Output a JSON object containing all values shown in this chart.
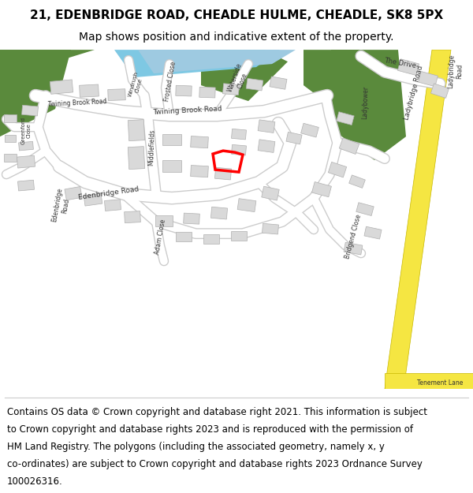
{
  "title_line1": "21, EDENBRIDGE ROAD, CHEADLE HULME, CHEADLE, SK8 5PX",
  "title_line2": "Map shows position and indicative extent of the property.",
  "footer_lines": [
    "Contains OS data © Crown copyright and database right 2021. This information is subject",
    "to Crown copyright and database rights 2023 and is reproduced with the permission of",
    "HM Land Registry. The polygons (including the associated geometry, namely x, y",
    "co-ordinates) are subject to Crown copyright and database rights 2023 Ordnance Survey",
    "100026316."
  ],
  "title_fontsize": 11,
  "subtitle_fontsize": 10,
  "footer_fontsize": 8.5,
  "map_bg": "#f2f2f0",
  "green_color": "#5a8a3c",
  "water_color": "#7ec8e3",
  "blue_color": "#9ecae1",
  "building_color": "#d9d9d9",
  "building_outline": "#b0b0b0",
  "yellow_road": "#f5e642",
  "yellow_road_edge": "#c8b800",
  "red_outline_color": "#ff0000",
  "white_road": "#ffffff",
  "road_edge": "#cccccc",
  "fig_width": 6.0,
  "fig_height": 6.25
}
